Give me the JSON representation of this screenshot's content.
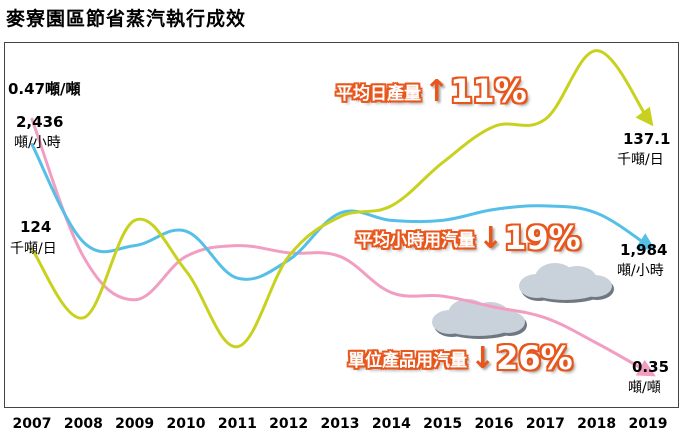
{
  "title": "麥寮園區節省蒸汽執行成效",
  "chart_data": {
    "type": "line",
    "x": [
      "2007",
      "2008",
      "2009",
      "2010",
      "2011",
      "2012",
      "2013",
      "2014",
      "2015",
      "2016",
      "2017",
      "2018",
      "2019"
    ],
    "series": [
      {
        "key": "daily",
        "color": "#c8d21e",
        "values": [
          0.64,
          0.45,
          0.72,
          0.58,
          0.37,
          0.62,
          0.73,
          0.76,
          0.88,
          0.98,
          1.0,
          1.19,
          1.0
        ],
        "start_value": "124",
        "start_unit": "千噸/日",
        "end_value": "137.1",
        "end_unit": "千噸/日"
      },
      {
        "key": "hourly",
        "color": "#56bfe7",
        "values": [
          0.93,
          0.66,
          0.65,
          0.69,
          0.56,
          0.61,
          0.74,
          0.72,
          0.72,
          0.75,
          0.76,
          0.74,
          0.65
        ],
        "start_value": "2,436",
        "start_unit": "噸/小時",
        "end_value": "1,984",
        "end_unit": "噸/小時"
      },
      {
        "key": "per-product",
        "color": "#f19ec2",
        "values": [
          1.0,
          0.62,
          0.5,
          0.62,
          0.65,
          0.63,
          0.62,
          0.52,
          0.51,
          0.48,
          0.45,
          0.38,
          0.3
        ],
        "start_value": "0.47噸/噸",
        "start_unit": "",
        "end_value": "0.35",
        "end_unit": "噸/噸"
      }
    ],
    "annotations": [
      {
        "key": "daily",
        "label": "平均日產量",
        "arrow": "↑",
        "change": "11%"
      },
      {
        "key": "hourly",
        "label": "平均小時用汽量",
        "arrow": "↓",
        "change": "19%"
      },
      {
        "key": "per-product",
        "label": "單位產品用汽量",
        "arrow": "↓",
        "change": "26%"
      }
    ]
  }
}
